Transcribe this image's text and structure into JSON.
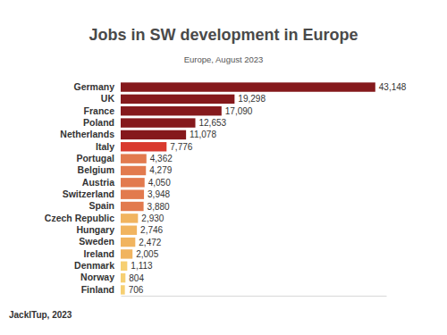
{
  "chart_data": {
    "type": "bar",
    "orientation": "horizontal",
    "title": "Jobs in SW development in Europe",
    "subtitle": "Europe, August 2023",
    "annotations": [
      "JackITup, 2023"
    ],
    "categories": [
      "Germany",
      "UK",
      "France",
      "Poland",
      "Netherlands",
      "Italy",
      "Portugal",
      "Belgium",
      "Austria",
      "Switzerland",
      "Spain",
      "Czech Republic",
      "Hungary",
      "Sweden",
      "Ireland",
      "Denmark",
      "Norway",
      "Finland"
    ],
    "values": [
      43148,
      19298,
      17090,
      12653,
      11078,
      7776,
      4362,
      4279,
      4050,
      3948,
      3880,
      2930,
      2746,
      2472,
      2005,
      1113,
      804,
      706
    ],
    "value_labels": [
      "43,148",
      "19,298",
      "17,090",
      "12,653",
      "11,078",
      "7,776",
      "4,362",
      "4,279",
      "4,050",
      "3,948",
      "3,880",
      "2,930",
      "2,746",
      "2,472",
      "2,005",
      "1,113",
      "804",
      "706"
    ],
    "colors": [
      "#85191c",
      "#85191c",
      "#85191c",
      "#85191c",
      "#85191c",
      "#d93a2f",
      "#e27a4e",
      "#e27a4e",
      "#e27a4e",
      "#e27a4e",
      "#e27a4e",
      "#f1b45f",
      "#f1b45f",
      "#f1b45f",
      "#f1b45f",
      "#f6cf72",
      "#f6cf72",
      "#f6cf72"
    ],
    "xlim": [
      0,
      45000
    ],
    "xticks": [],
    "data_labels": true,
    "tick_labels": "y",
    "grid": false
  }
}
